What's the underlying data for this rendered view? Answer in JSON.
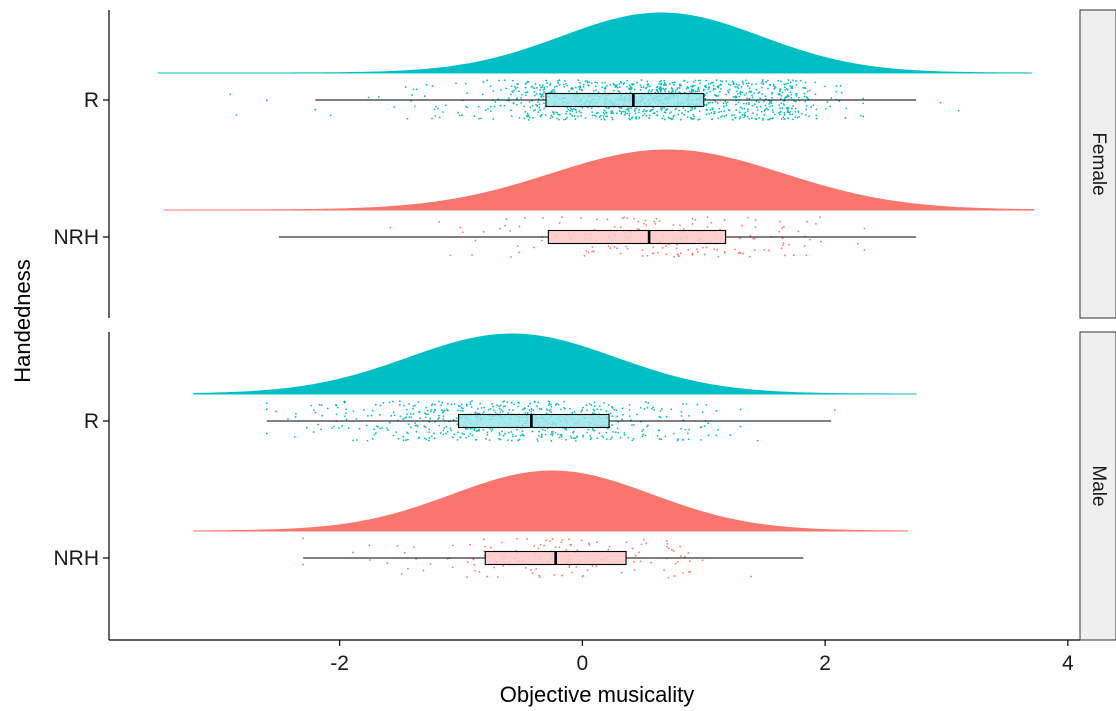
{
  "chart_data": {
    "type": "raincloud",
    "xlabel": "Objective musicality",
    "ylabel": "Handedness",
    "xlim": [
      -3.9,
      4.1
    ],
    "x_ticks": [
      -2,
      0,
      2,
      4
    ],
    "x_tick_labels": [
      "-2",
      "0",
      "2",
      "4"
    ],
    "y_categories": [
      "R",
      "NRH"
    ],
    "colors": {
      "R": "#00BFC4",
      "NRH": "#F8766D"
    },
    "grid": false,
    "panels": [
      {
        "label": "Female",
        "groups": [
          {
            "name": "R",
            "color": "#00BFC4",
            "box": {
              "whisker_low": -2.2,
              "q1": -0.3,
              "median": 0.42,
              "q3": 1.0,
              "whisker_high": 2.75
            },
            "density": {
              "mean": 0.65,
              "sd": 0.82,
              "min": -3.5,
              "max": 3.7
            },
            "n_points": 1100,
            "outliers": [
              -2.9,
              -2.85,
              -2.6,
              2.95,
              3.1
            ]
          },
          {
            "name": "NRH",
            "color": "#F8766D",
            "box": {
              "whisker_low": -2.5,
              "q1": -0.28,
              "median": 0.55,
              "q3": 1.18,
              "whisker_high": 2.75
            },
            "density": {
              "mean": 0.7,
              "sd": 0.95,
              "min": -3.45,
              "max": 3.72
            },
            "n_points": 170,
            "outliers": []
          }
        ]
      },
      {
        "label": "Male",
        "groups": [
          {
            "name": "R",
            "color": "#00BFC4",
            "box": {
              "whisker_low": -2.6,
              "q1": -1.02,
              "median": -0.42,
              "q3": 0.22,
              "whisker_high": 2.05
            },
            "density": {
              "mean": -0.58,
              "sd": 0.85,
              "min": -3.2,
              "max": 2.75
            },
            "n_points": 600,
            "outliers": [
              2.08
            ]
          },
          {
            "name": "NRH",
            "color": "#F8766D",
            "box": {
              "whisker_low": -2.3,
              "q1": -0.8,
              "median": -0.22,
              "q3": 0.36,
              "whisker_high": 1.82
            },
            "density": {
              "mean": -0.25,
              "sd": 0.82,
              "min": -3.2,
              "max": 2.68
            },
            "n_points": 150,
            "outliers": []
          }
        ]
      }
    ]
  }
}
